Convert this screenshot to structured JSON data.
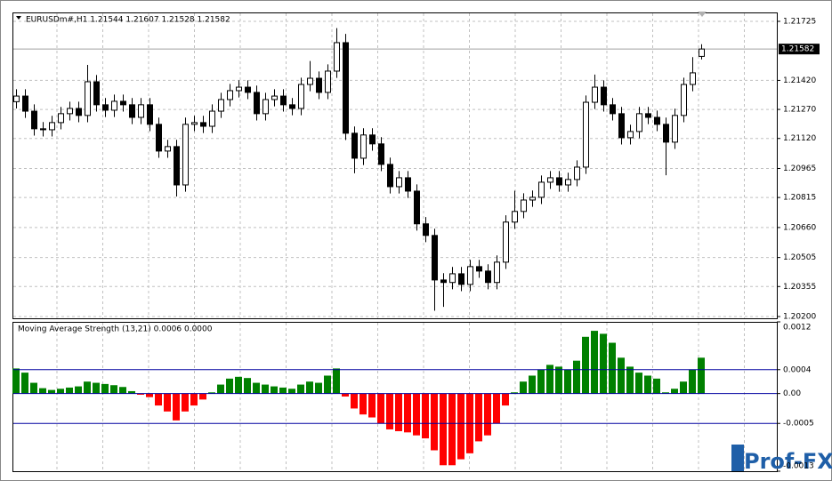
{
  "chart_data": [
    {
      "type": "candlestick",
      "title": "EURUSDm#,H1  1.21544 1.21607 1.21528 1.21582",
      "bull_color": "#ffffff",
      "bear_color": "#000000",
      "grid": true,
      "ylim": [
        1.20191,
        1.21771
      ],
      "yticks": [
        1.21725,
        {
          "value": 1.2142,
          "label": "1.21420"
        },
        {
          "value": 1.2127,
          "label": "1.21270"
        },
        {
          "value": 1.2112,
          "label": "1.21120"
        },
        1.20965,
        1.20815,
        {
          "value": 1.2066,
          "label": "1.20660"
        },
        1.20505,
        1.20355,
        {
          "value": 1.202,
          "label": "1.20200"
        }
      ],
      "last_price": 1.21582,
      "candles": [
        [
          1.2131,
          1.21374,
          1.21275,
          1.21339
        ],
        [
          1.21339,
          1.21374,
          1.21226,
          1.21261
        ],
        [
          1.21261,
          1.21296,
          1.21135,
          1.2117
        ],
        [
          1.2117,
          1.21205,
          1.2113,
          1.21165
        ],
        [
          1.21165,
          1.21237,
          1.2113,
          1.21202
        ],
        [
          1.21202,
          1.21283,
          1.21167,
          1.21248
        ],
        [
          1.21248,
          1.2131,
          1.21213,
          1.21275
        ],
        [
          1.21275,
          1.2131,
          1.21204,
          1.21239
        ],
        [
          1.21239,
          1.215,
          1.21204,
          1.21413
        ],
        [
          1.21413,
          1.21448,
          1.21259,
          1.21294
        ],
        [
          1.21294,
          1.21329,
          1.21231,
          1.21266
        ],
        [
          1.21266,
          1.21347,
          1.21231,
          1.21312
        ],
        [
          1.21312,
          1.21347,
          1.21259,
          1.21294
        ],
        [
          1.21294,
          1.21329,
          1.21194,
          1.21229
        ],
        [
          1.21229,
          1.21329,
          1.21194,
          1.21294
        ],
        [
          1.21294,
          1.21329,
          1.21158,
          1.21193
        ],
        [
          1.21193,
          1.21228,
          1.2102,
          1.21055
        ],
        [
          1.21055,
          1.21113,
          1.2102,
          1.21078
        ],
        [
          1.21078,
          1.21113,
          1.2082,
          1.2088
        ],
        [
          1.2088,
          1.21228,
          1.20845,
          1.21193
        ],
        [
          1.21193,
          1.21237,
          1.21158,
          1.21202
        ],
        [
          1.21202,
          1.21237,
          1.21148,
          1.21183
        ],
        [
          1.21183,
          1.21296,
          1.21148,
          1.21261
        ],
        [
          1.21261,
          1.21356,
          1.21226,
          1.21321
        ],
        [
          1.21321,
          1.21402,
          1.21286,
          1.21367
        ],
        [
          1.21367,
          1.2142,
          1.21332,
          1.21385
        ],
        [
          1.21385,
          1.2142,
          1.21323,
          1.21358
        ],
        [
          1.21358,
          1.21393,
          1.21213,
          1.21248
        ],
        [
          1.21248,
          1.21356,
          1.21213,
          1.21321
        ],
        [
          1.21321,
          1.21374,
          1.21286,
          1.21339
        ],
        [
          1.21339,
          1.21374,
          1.21259,
          1.21294
        ],
        [
          1.21294,
          1.21329,
          1.2124,
          1.21275
        ],
        [
          1.21275,
          1.21434,
          1.2124,
          1.21399
        ],
        [
          1.21399,
          1.2152,
          1.21364,
          1.21431
        ],
        [
          1.21431,
          1.21466,
          1.21323,
          1.21358
        ],
        [
          1.21358,
          1.21503,
          1.21323,
          1.21468
        ],
        [
          1.21468,
          1.2169,
          1.21433,
          1.21615
        ],
        [
          1.21615,
          1.2166,
          1.21112,
          1.21147
        ],
        [
          1.21147,
          1.21182,
          1.2094,
          1.21018
        ],
        [
          1.21018,
          1.21173,
          1.20983,
          1.21138
        ],
        [
          1.21138,
          1.21173,
          1.21057,
          1.21092
        ],
        [
          1.21092,
          1.21127,
          1.20951,
          1.20986
        ],
        [
          1.20986,
          1.21021,
          1.20836,
          1.20871
        ],
        [
          1.20871,
          1.20952,
          1.20836,
          1.20917
        ],
        [
          1.20917,
          1.20952,
          1.20813,
          1.20848
        ],
        [
          1.20848,
          1.20883,
          1.20644,
          1.20679
        ],
        [
          1.20679,
          1.20714,
          1.20584,
          1.20619
        ],
        [
          1.20619,
          1.20654,
          1.2023,
          1.20389
        ],
        [
          1.20389,
          1.20424,
          1.2025,
          1.20376
        ],
        [
          1.20376,
          1.20456,
          1.20341,
          1.20421
        ],
        [
          1.20421,
          1.20456,
          1.20331,
          1.20366
        ],
        [
          1.20366,
          1.20493,
          1.20331,
          1.20458
        ],
        [
          1.20458,
          1.20493,
          1.204,
          1.20435
        ],
        [
          1.20435,
          1.2047,
          1.20341,
          1.20376
        ],
        [
          1.20376,
          1.20516,
          1.20341,
          1.20481
        ],
        [
          1.20481,
          1.20723,
          1.20446,
          1.20688
        ],
        [
          1.20688,
          1.2085,
          1.20653,
          1.20743
        ],
        [
          1.20743,
          1.20837,
          1.20708,
          1.20802
        ],
        [
          1.20802,
          1.20851,
          1.20767,
          1.20816
        ],
        [
          1.20816,
          1.20929,
          1.20781,
          1.20894
        ],
        [
          1.20894,
          1.20952,
          1.20859,
          1.20917
        ],
        [
          1.20917,
          1.20952,
          1.20845,
          1.2088
        ],
        [
          1.2088,
          1.20943,
          1.20845,
          1.20908
        ],
        [
          1.20908,
          1.21007,
          1.20873,
          1.20972
        ],
        [
          1.20972,
          1.21342,
          1.20937,
          1.21307
        ],
        [
          1.21307,
          1.2145,
          1.21272,
          1.21385
        ],
        [
          1.21385,
          1.2142,
          1.21259,
          1.21294
        ],
        [
          1.21294,
          1.21329,
          1.21213,
          1.21248
        ],
        [
          1.21248,
          1.21283,
          1.21089,
          1.21124
        ],
        [
          1.21124,
          1.21191,
          1.21089,
          1.21156
        ],
        [
          1.21156,
          1.21283,
          1.21121,
          1.21248
        ],
        [
          1.21248,
          1.21283,
          1.21194,
          1.21229
        ],
        [
          1.21229,
          1.21264,
          1.21158,
          1.21193
        ],
        [
          1.21193,
          1.21228,
          1.2093,
          1.21101
        ],
        [
          1.21101,
          1.21274,
          1.21066,
          1.21239
        ],
        [
          1.21239,
          1.21434,
          1.21204,
          1.21399
        ],
        [
          1.21399,
          1.2154,
          1.21364,
          1.21459
        ],
        [
          1.21544,
          1.21607,
          1.21528,
          1.21582
        ]
      ]
    },
    {
      "type": "histogram",
      "title": "Moving Average Strength (13,21) 0.0006 0.0000",
      "up_color": "#008000",
      "down_color": "#ff0000",
      "level_color": "#0000a0",
      "ylim": [
        -0.0013,
        0.0012
      ],
      "yticks": [
        0.0012,
        0.0004,
        {
          "value": 0,
          "label": "0.00"
        },
        -0.0005,
        -0.0013
      ],
      "levels": [
        0.0004,
        0,
        -0.0005
      ],
      "values": [
        0.00042,
        0.00035,
        0.00018,
        9e-05,
        6e-05,
        8e-05,
        0.0001,
        0.00012,
        0.0002,
        0.00018,
        0.00016,
        0.00014,
        0.00011,
        4e-05,
        -2e-05,
        -6e-05,
        -0.0002,
        -0.0003,
        -0.00045,
        -0.0003,
        -0.0002,
        -0.0001,
        2e-05,
        0.00015,
        0.00025,
        0.00028,
        0.00026,
        0.00018,
        0.00015,
        0.00012,
        0.0001,
        8e-05,
        0.00015,
        0.0002,
        0.00018,
        0.0003,
        0.00042,
        -5e-05,
        -0.00025,
        -0.00035,
        -0.0004,
        -0.0005,
        -0.0006,
        -0.00063,
        -0.00065,
        -0.0007,
        -0.00075,
        -0.00095,
        -0.0012,
        -0.0012,
        -0.0011,
        -0.001,
        -0.0008,
        -0.0007,
        -0.0005,
        -0.0002,
        2e-05,
        0.0002,
        0.0003,
        0.0004,
        0.00048,
        0.00045,
        0.0004,
        0.00055,
        0.00095,
        0.00105,
        0.001,
        0.00085,
        0.0006,
        0.00045,
        0.00035,
        0.0003,
        0.00025,
        2e-05,
        8e-05,
        0.0002,
        0.0004,
        0.0006
      ]
    }
  ],
  "watermark": "Prof-FX"
}
